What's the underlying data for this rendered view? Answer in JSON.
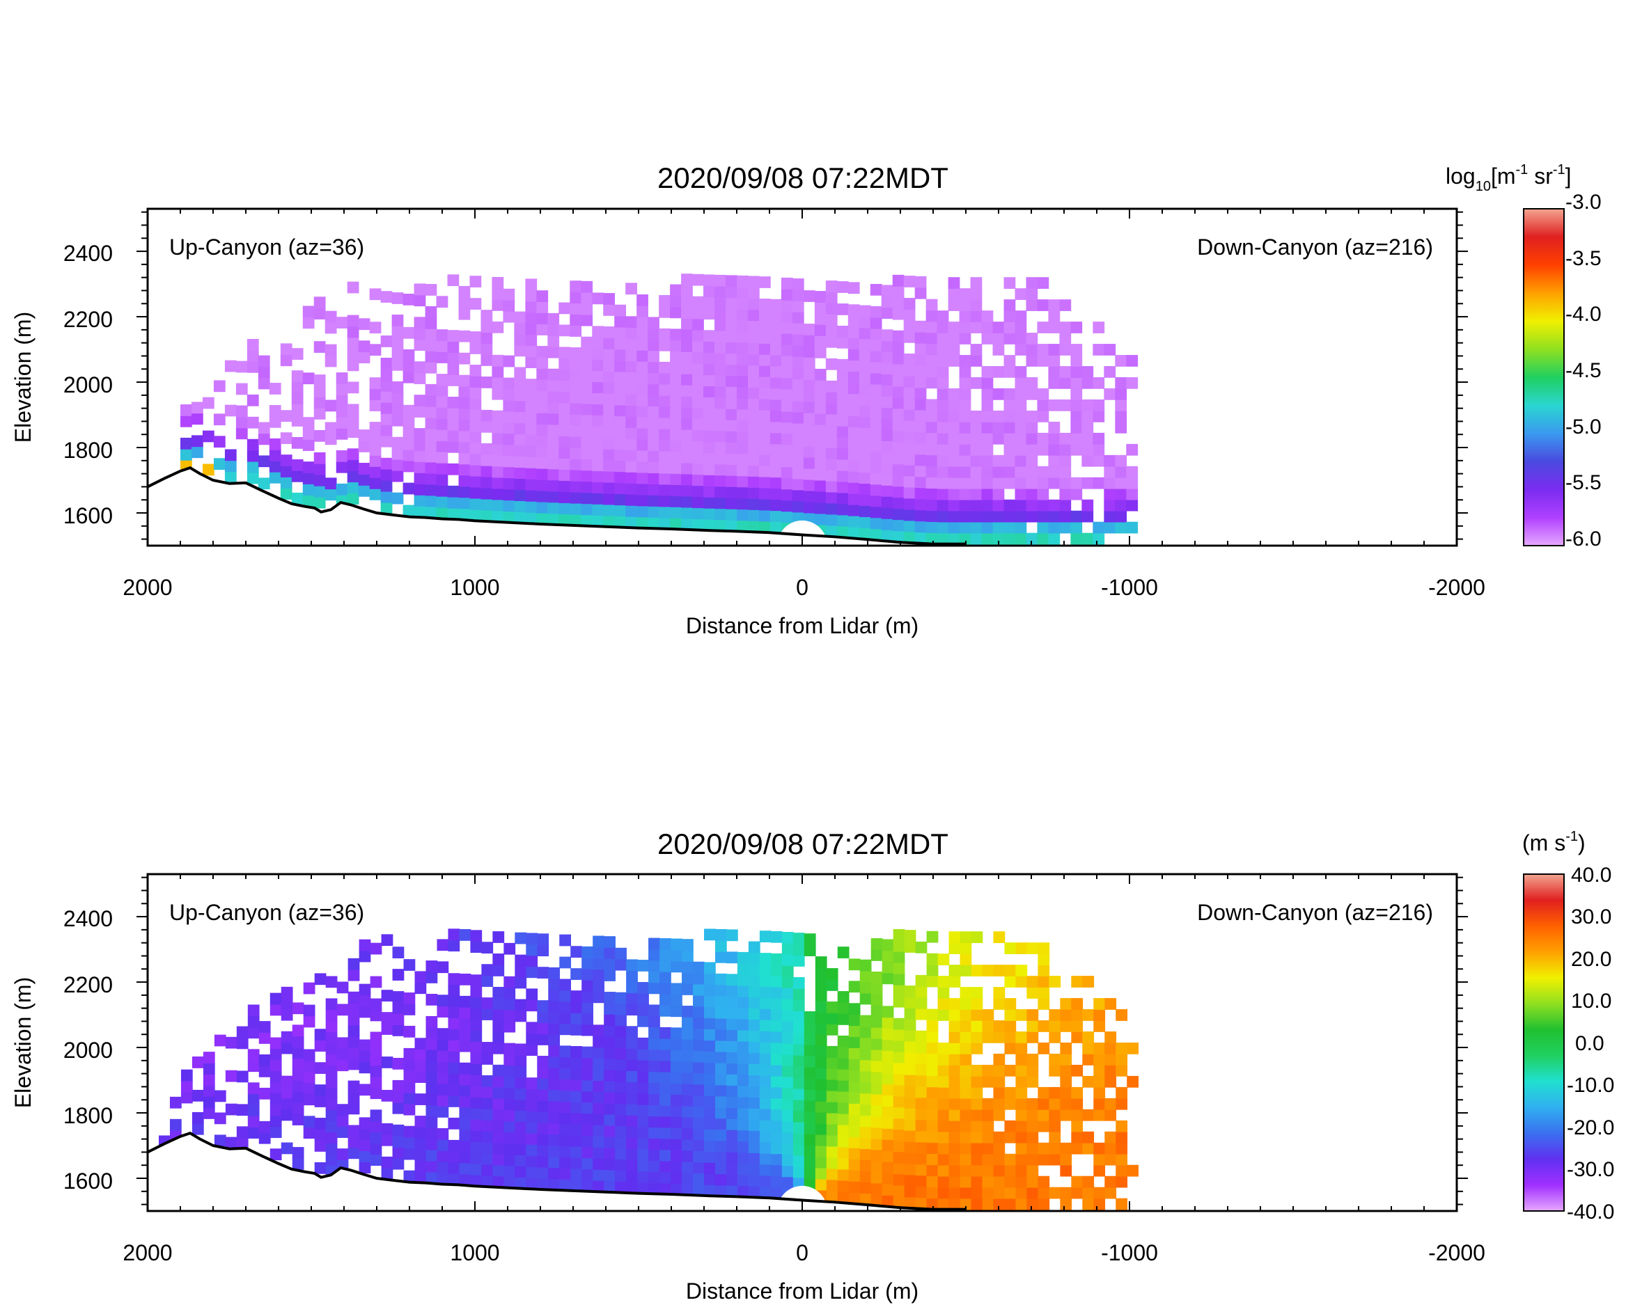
{
  "colors": {
    "axis": "#000000",
    "terrain": "#000000",
    "background": "#ffffff",
    "backscatter_colormap": [
      "#e6a8ff",
      "#b040ff",
      "#7a2cf0",
      "#4a4ae0",
      "#3a9af0",
      "#2ad6d0",
      "#20d060",
      "#90e020",
      "#f0f000",
      "#ffa000",
      "#ff4000",
      "#e02020",
      "#f3a591"
    ],
    "velocity_colormap": [
      "#e6a8ff",
      "#a030ff",
      "#6030f0",
      "#3a70f0",
      "#30b0f0",
      "#20e0d0",
      "#20d060",
      "#20c030",
      "#90e020",
      "#f0f000",
      "#ffa000",
      "#ff6000",
      "#e02020",
      "#f3a591"
    ]
  },
  "chart_data": [
    {
      "type": "heatmap",
      "title": "2020/09/08 07:22MDT",
      "xlabel": "Distance from Lidar (m)",
      "ylabel": "Elevation (m)",
      "xlim": [
        2000,
        -2000
      ],
      "ylim": [
        1500,
        2530
      ],
      "x_ticks": [
        2000,
        1000,
        0,
        -1000,
        -2000
      ],
      "x_tick_labels": [
        "2000",
        "1000",
        "0",
        "-1000",
        "-2000"
      ],
      "y_ticks": [
        1600,
        1800,
        2000,
        2200,
        2400
      ],
      "y_tick_labels": [
        "1600",
        "1800",
        "2000",
        "2200",
        "2400"
      ],
      "annotations": [
        "Up-Canyon (az=36)",
        "Down-Canyon (az=216)"
      ],
      "variable": "log10 backscatter",
      "colorbar": {
        "label_parts": [
          "log",
          "10",
          "[m",
          "-1",
          " sr",
          "-1",
          "]"
        ],
        "range": [
          -6.0,
          -3.0
        ],
        "ticks": [
          -3.0,
          -3.5,
          -4.0,
          -4.5,
          -5.0,
          -5.5,
          -6.0
        ],
        "tick_labels": [
          "-3.0",
          "-3.5",
          "-4.0",
          "-4.5",
          "-5.0",
          "-5.5",
          "-6.0"
        ]
      },
      "lidar_position": [
        0,
        1530
      ],
      "field_extent": {
        "up_canyon_max_x": 1900,
        "down_canyon_max_x": -1000,
        "max_elevation": 2300
      }
    },
    {
      "type": "heatmap",
      "title": "2020/09/08 07:22MDT",
      "xlabel": "Distance from Lidar (m)",
      "ylabel": "Elevation (m)",
      "xlim": [
        2000,
        -2000
      ],
      "ylim": [
        1500,
        2530
      ],
      "x_ticks": [
        2000,
        1000,
        0,
        -1000,
        -2000
      ],
      "x_tick_labels": [
        "2000",
        "1000",
        "0",
        "-1000",
        "-2000"
      ],
      "y_ticks": [
        1600,
        1800,
        2000,
        2200,
        2400
      ],
      "y_tick_labels": [
        "1600",
        "1800",
        "2000",
        "2200",
        "2400"
      ],
      "annotations": [
        "Up-Canyon (az=36)",
        "Down-Canyon (az=216)"
      ],
      "variable": "radial velocity",
      "colorbar": {
        "label_parts": [
          "(m s",
          "-1",
          ")"
        ],
        "range": [
          -40.0,
          40.0
        ],
        "ticks": [
          40.0,
          30.0,
          20.0,
          10.0,
          0.0,
          -10.0,
          -20.0,
          -30.0,
          -40.0
        ],
        "tick_labels": [
          "40.0",
          "30.0",
          "20.0",
          "10.0",
          "0.0",
          "-10.0",
          "-20.0",
          "-30.0",
          "-40.0"
        ]
      },
      "lidar_position": [
        0,
        1530
      ],
      "field_extent": {
        "up_canyon_max_x": 2000,
        "down_canyon_max_x": -1000,
        "max_elevation": 2330
      }
    }
  ],
  "terrain_profile": [
    [
      2000,
      1680
    ],
    [
      1950,
      1705
    ],
    [
      1900,
      1728
    ],
    [
      1870,
      1738
    ],
    [
      1840,
      1720
    ],
    [
      1800,
      1700
    ],
    [
      1750,
      1690
    ],
    [
      1700,
      1692
    ],
    [
      1650,
      1668
    ],
    [
      1600,
      1645
    ],
    [
      1560,
      1628
    ],
    [
      1520,
      1620
    ],
    [
      1490,
      1615
    ],
    [
      1470,
      1603
    ],
    [
      1440,
      1610
    ],
    [
      1410,
      1632
    ],
    [
      1380,
      1625
    ],
    [
      1340,
      1612
    ],
    [
      1300,
      1600
    ],
    [
      1250,
      1594
    ],
    [
      1200,
      1588
    ],
    [
      1150,
      1586
    ],
    [
      1100,
      1582
    ],
    [
      1050,
      1580
    ],
    [
      1000,
      1576
    ],
    [
      900,
      1571
    ],
    [
      800,
      1566
    ],
    [
      700,
      1562
    ],
    [
      600,
      1558
    ],
    [
      500,
      1554
    ],
    [
      400,
      1551
    ],
    [
      300,
      1547
    ],
    [
      200,
      1544
    ],
    [
      100,
      1540
    ],
    [
      0,
      1533
    ],
    [
      -100,
      1527
    ],
    [
      -200,
      1519
    ],
    [
      -300,
      1510
    ],
    [
      -400,
      1505
    ],
    [
      -500,
      1505
    ]
  ]
}
